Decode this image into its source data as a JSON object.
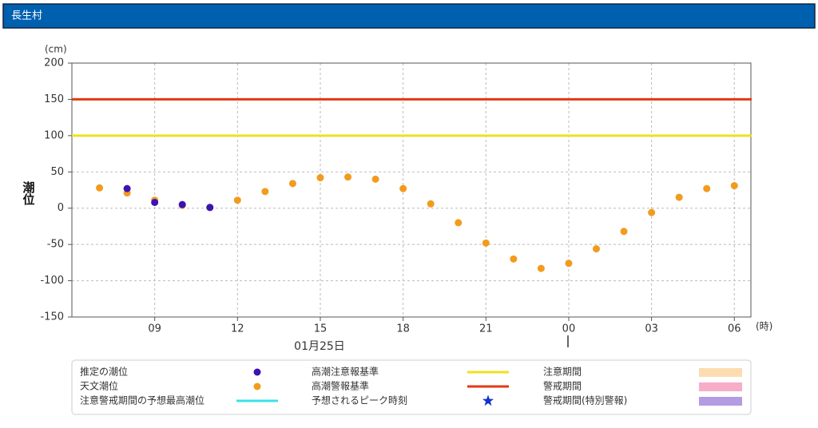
{
  "header": {
    "title": "長生村"
  },
  "chart_data": {
    "type": "scatter",
    "y_unit": "(cm)",
    "y_label": "潮位",
    "x_unit": "(時)",
    "date_label": "01月25日",
    "xlim": [
      6,
      30.6
    ],
    "xticks": [
      {
        "value": 9,
        "label": "09"
      },
      12,
      15,
      18,
      21,
      {
        "value": 24,
        "label": "00"
      },
      {
        "value": 27,
        "label": "03"
      },
      {
        "value": 30,
        "label": "06"
      }
    ],
    "ylim": [
      -150,
      200
    ],
    "yticks": [
      -150,
      -100,
      -50,
      0,
      50,
      100,
      150,
      200
    ],
    "grid": true,
    "series": [
      {
        "name": "推定の潮位",
        "color": "#3a14b4",
        "x": [
          8,
          9,
          10,
          11
        ],
        "values": [
          27,
          8,
          5,
          1
        ]
      },
      {
        "name": "天文潮位",
        "color": "#f29b1d",
        "x": [
          7,
          8,
          9,
          10,
          11,
          12,
          13,
          14,
          15,
          16,
          17,
          18,
          19,
          20,
          21,
          22,
          23,
          24,
          25,
          26,
          27,
          28,
          29,
          30
        ],
        "values": [
          28,
          21,
          11,
          4,
          1,
          11,
          23,
          34,
          42,
          43,
          40,
          27,
          6,
          -20,
          -48,
          -70,
          -83,
          -76,
          -56,
          -32,
          -6,
          15,
          27,
          31
        ]
      }
    ],
    "thresholds": [
      {
        "name": "高潮注意報基準",
        "value": 100,
        "color": "#f0e020"
      },
      {
        "name": "高潮警報基準",
        "value": 150,
        "color": "#e03a14"
      }
    ],
    "legend_extra": [
      {
        "name": "注意警戒期間の予想最高潮位",
        "color": "#3ee0e8",
        "symbol": "line"
      },
      {
        "name": "予想されるピーク時刻",
        "color": "#1133cc",
        "symbol": "star"
      },
      {
        "name": "注意期間",
        "color": "#fddcb0",
        "symbol": "box"
      },
      {
        "name": "警戒期間",
        "color": "#f7acc8",
        "symbol": "box"
      },
      {
        "name": "警戒期間(特別警報)",
        "color": "#b49be2",
        "symbol": "box"
      }
    ]
  }
}
